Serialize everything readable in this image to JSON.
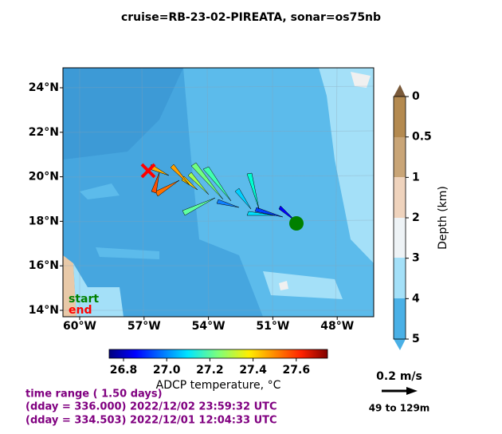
{
  "header": {
    "title": "cruise=RB-23-02-PIREATA,   sonar=os75nb"
  },
  "map": {
    "lat_labels": [
      "24°N",
      "22°N",
      "20°N",
      "18°N",
      "16°N",
      "14°N"
    ],
    "lon_labels": [
      "60°W",
      "57°W",
      "54°W",
      "51°W",
      "48°W"
    ],
    "start_label": "start",
    "end_label": "end"
  },
  "depth_colorbar": {
    "label": "Depth (km)",
    "ticks": [
      0,
      0.5,
      1,
      2,
      3,
      4,
      5
    ]
  },
  "temperature_colorbar": {
    "label": "ADCP temperature, °C",
    "ticks": [
      "26.8",
      "27.0",
      "27.2",
      "27.4",
      "27.6"
    ]
  },
  "scale": {
    "speed": "0.2 m/s",
    "depth_range": "49 to 129m"
  },
  "info": [
    "time range ( 1.50 days)",
    "(dday = 336.000) 2022/12/02 23:59:32 UTC",
    "(dday = 334.503) 2022/12/01 12:04:33 UTC"
  ]
}
